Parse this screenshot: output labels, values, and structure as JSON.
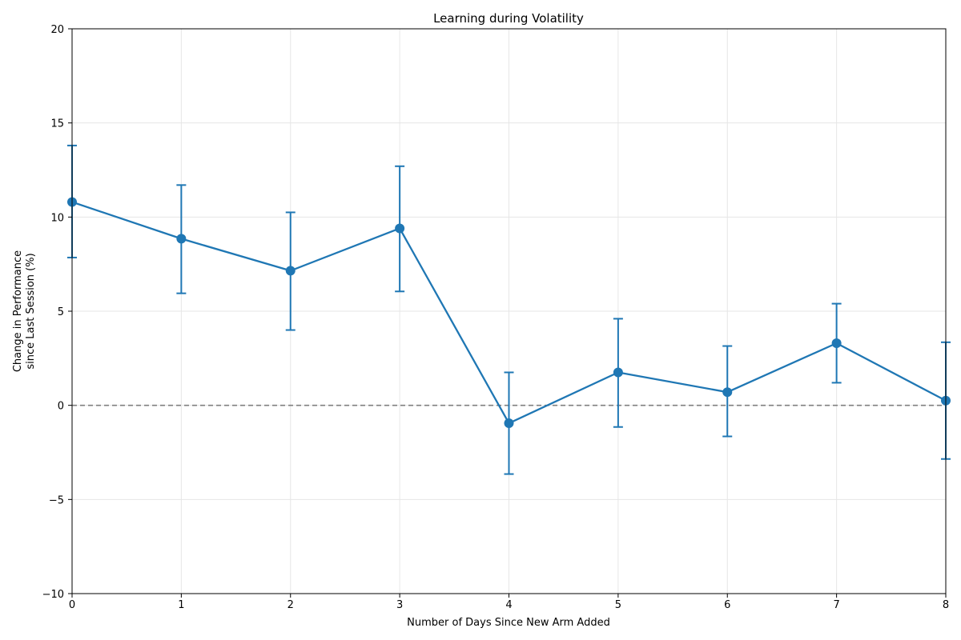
{
  "chart_data": {
    "type": "line",
    "title": "Learning during Volatility",
    "xlabel": "Number of Days Since New Arm Added",
    "ylabel_lines": [
      "Change in Performance",
      "since Last Session (%)"
    ],
    "xlim": [
      0,
      8
    ],
    "ylim": [
      -10,
      20
    ],
    "x_ticks": [
      0,
      1,
      2,
      3,
      4,
      5,
      6,
      7,
      8
    ],
    "y_ticks": [
      -10,
      -5,
      0,
      5,
      10,
      15,
      20
    ],
    "y_tick_labels": [
      "−10",
      "−5",
      "0",
      "5",
      "10",
      "15",
      "20"
    ],
    "grid": true,
    "reference_line": {
      "y": 0,
      "style": "dashed",
      "color": "#7f7f7f"
    },
    "series": [
      {
        "color": "#1f77b4",
        "x": [
          0,
          1,
          2,
          3,
          4,
          5,
          6,
          7,
          8
        ],
        "y": [
          10.8,
          8.85,
          7.15,
          9.4,
          -0.95,
          1.75,
          0.7,
          3.3,
          0.25
        ],
        "error_low": [
          7.85,
          5.95,
          4.0,
          6.05,
          -3.65,
          -1.15,
          -1.65,
          1.2,
          -2.85
        ],
        "error_high": [
          13.8,
          11.7,
          10.25,
          12.7,
          1.75,
          4.6,
          3.15,
          5.4,
          3.35
        ]
      }
    ]
  }
}
